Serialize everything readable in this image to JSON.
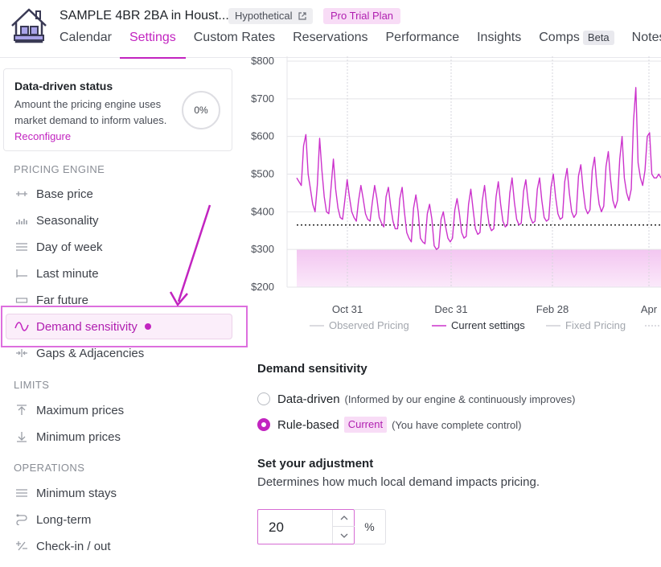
{
  "header": {
    "listing_title": "SAMPLE 4BR 2BA in Houst...",
    "hypothetical_badge": "Hypothetical",
    "plan_badge": "Pro Trial Plan",
    "tabs": [
      {
        "label": "Calendar"
      },
      {
        "label": "Settings",
        "active": true
      },
      {
        "label": "Custom Rates"
      },
      {
        "label": "Reservations"
      },
      {
        "label": "Performance"
      },
      {
        "label": "Insights"
      },
      {
        "label": "Comps",
        "badge": "Beta"
      },
      {
        "label": "Notes"
      }
    ]
  },
  "status_card": {
    "title": "Data-driven status",
    "description": "Amount the pricing engine uses market demand to inform values.",
    "link": "Reconfigure",
    "percent": "0%"
  },
  "sidebar": {
    "sections": [
      {
        "label": "PRICING ENGINE"
      },
      {
        "label": "LIMITS"
      },
      {
        "label": "OPERATIONS"
      }
    ],
    "items": [
      {
        "label": "Base price",
        "icon": "base-price-icon"
      },
      {
        "label": "Seasonality",
        "icon": "seasonality-icon"
      },
      {
        "label": "Day of week",
        "icon": "day-of-week-icon"
      },
      {
        "label": "Last minute",
        "icon": "last-minute-icon"
      },
      {
        "label": "Far future",
        "icon": "far-future-icon"
      },
      {
        "label": "Demand sensitivity",
        "icon": "wave-icon",
        "active": true
      },
      {
        "label": "Gaps & Adjacencies",
        "icon": "gaps-icon"
      },
      {
        "label": "Maximum prices",
        "icon": "arrow-up-icon"
      },
      {
        "label": "Minimum prices",
        "icon": "arrow-down-icon"
      },
      {
        "label": "Minimum stays",
        "icon": "lines-icon"
      },
      {
        "label": "Long-term",
        "icon": "route-icon"
      },
      {
        "label": "Check-in / out",
        "icon": "plus-minus-icon"
      }
    ]
  },
  "chart_data": {
    "type": "line",
    "y_ticks": [
      "$800",
      "$700",
      "$600",
      "$500",
      "$400",
      "$300",
      "$200"
    ],
    "ylim": [
      200,
      800
    ],
    "x_ticks": [
      "Oct 31",
      "Dec 31",
      "Feb 28",
      "Apr"
    ],
    "grid": true,
    "legend_position": "bottom",
    "legend": [
      "Observed Pricing",
      "Current settings",
      "Fixed Pricing"
    ],
    "reference_line_value": 365,
    "min_price_band": [
      200,
      300
    ],
    "colors": {
      "current": "#cc33cc",
      "band": "#f3c6f1",
      "reference": "#222222"
    },
    "series": [
      {
        "name": "Current settings",
        "values": [
          490,
          480,
          470,
          575,
          605,
          500,
          460,
          420,
          400,
          470,
          595,
          510,
          440,
          400,
          395,
          465,
          540,
          460,
          410,
          385,
          380,
          430,
          485,
          440,
          400,
          385,
          375,
          430,
          470,
          435,
          395,
          380,
          375,
          425,
          470,
          435,
          385,
          370,
          360,
          440,
          465,
          415,
          375,
          355,
          355,
          435,
          465,
          400,
          345,
          330,
          320,
          410,
          445,
          400,
          330,
          320,
          315,
          395,
          420,
          380,
          310,
          300,
          305,
          380,
          400,
          360,
          330,
          320,
          330,
          405,
          435,
          395,
          345,
          330,
          335,
          420,
          460,
          405,
          355,
          340,
          345,
          430,
          470,
          410,
          365,
          350,
          355,
          440,
          480,
          420,
          375,
          360,
          365,
          450,
          490,
          425,
          380,
          365,
          370,
          455,
          485,
          425,
          385,
          370,
          375,
          460,
          490,
          430,
          385,
          375,
          380,
          465,
          500,
          440,
          395,
          380,
          385,
          480,
          515,
          450,
          400,
          385,
          395,
          495,
          525,
          460,
          410,
          395,
          405,
          510,
          545,
          470,
          420,
          400,
          415,
          520,
          560,
          485,
          430,
          410,
          430,
          540,
          600,
          490,
          450,
          430,
          460,
          640,
          730,
          530,
          490,
          470,
          510,
          600,
          610,
          500,
          490,
          490,
          500,
          490
        ]
      }
    ]
  },
  "demand": {
    "title": "Demand sensitivity",
    "options": [
      {
        "label": "Data-driven",
        "note": "(Informed by our engine & continuously improves)",
        "selected": false
      },
      {
        "label": "Rule-based",
        "badge": "Current",
        "note": "(You have complete control)",
        "selected": true
      }
    ]
  },
  "adjustment": {
    "title": "Set your adjustment",
    "description": "Determines how much local demand impacts pricing.",
    "value": "20",
    "unit": "%"
  }
}
